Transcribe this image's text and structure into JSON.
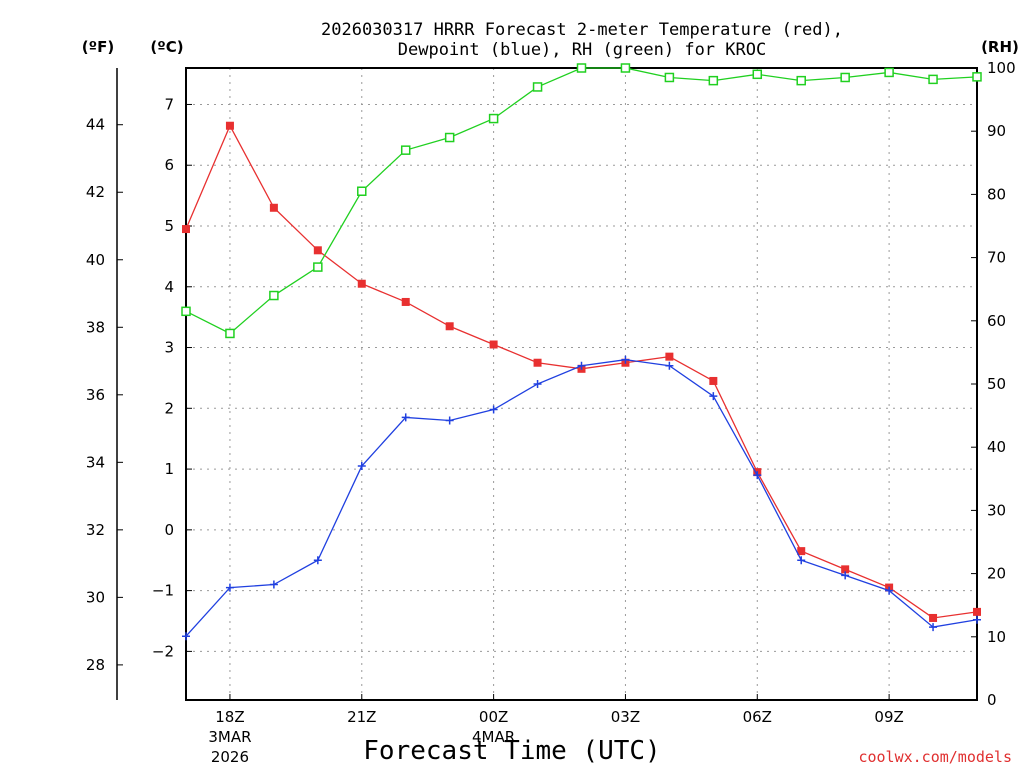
{
  "chart_data": {
    "type": "line",
    "title_line1": "2026030317 HRRR Forecast 2-meter Temperature (red),",
    "title_line2": "Dewpoint (blue), RH (green) for KROC",
    "xlabel": "Forecast Time (UTC)",
    "credit": "coolwx.com/models",
    "unit_f": "(ºF)",
    "unit_c": "(ºC)",
    "unit_rh": "(RH)",
    "x_hours": [
      17,
      18,
      19,
      20,
      21,
      22,
      23,
      24,
      25,
      26,
      27,
      28,
      29,
      30,
      31,
      32,
      33,
      34,
      35
    ],
    "xlim": [
      17,
      35
    ],
    "x_ticks": [
      {
        "hour": 18,
        "label": "18Z",
        "label2": "3MAR",
        "label3": "2026"
      },
      {
        "hour": 21,
        "label": "21Z",
        "label2": "",
        "label3": ""
      },
      {
        "hour": 24,
        "label": "00Z",
        "label2": "4MAR",
        "label3": ""
      },
      {
        "hour": 27,
        "label": "03Z",
        "label2": "",
        "label3": ""
      },
      {
        "hour": 30,
        "label": "06Z",
        "label2": "",
        "label3": ""
      },
      {
        "hour": 33,
        "label": "09Z",
        "label2": "",
        "label3": ""
      }
    ],
    "ylim_c": [
      -2.8,
      7.6
    ],
    "y_ticks_c": [
      -2,
      -1,
      0,
      1,
      2,
      3,
      4,
      5,
      6,
      7
    ],
    "y_ticks_f": [
      28,
      30,
      32,
      34,
      36,
      38,
      40,
      42,
      44
    ],
    "ylim_rh": [
      0,
      100
    ],
    "y_ticks_rh": [
      0,
      10,
      20,
      30,
      40,
      50,
      60,
      70,
      80,
      90,
      100
    ],
    "series": [
      {
        "name": "Temperature",
        "axis": "C",
        "color": "#e83030",
        "marker": "filled-square",
        "values": [
          4.95,
          6.65,
          5.3,
          4.6,
          4.05,
          3.75,
          3.35,
          3.05,
          2.75,
          2.65,
          2.75,
          2.85,
          2.45,
          0.95,
          -0.35,
          -0.65,
          -0.95,
          -1.45,
          -1.35
        ]
      },
      {
        "name": "Dewpoint",
        "axis": "C",
        "color": "#2040e0",
        "marker": "plus",
        "values": [
          -1.75,
          -0.95,
          -0.9,
          -0.5,
          1.05,
          1.85,
          1.8,
          1.98,
          2.4,
          2.7,
          2.8,
          2.7,
          2.2,
          0.9,
          -0.5,
          -0.75,
          -1.0,
          -1.6,
          -1.48
        ]
      },
      {
        "name": "RH",
        "axis": "RH",
        "color": "#20d020",
        "marker": "open-square",
        "values": [
          61.5,
          58,
          64,
          68.5,
          80.5,
          87,
          89,
          92,
          97,
          100,
          100,
          98.5,
          98,
          99,
          98,
          98.5,
          99.3,
          98.2,
          98.6
        ]
      }
    ]
  }
}
